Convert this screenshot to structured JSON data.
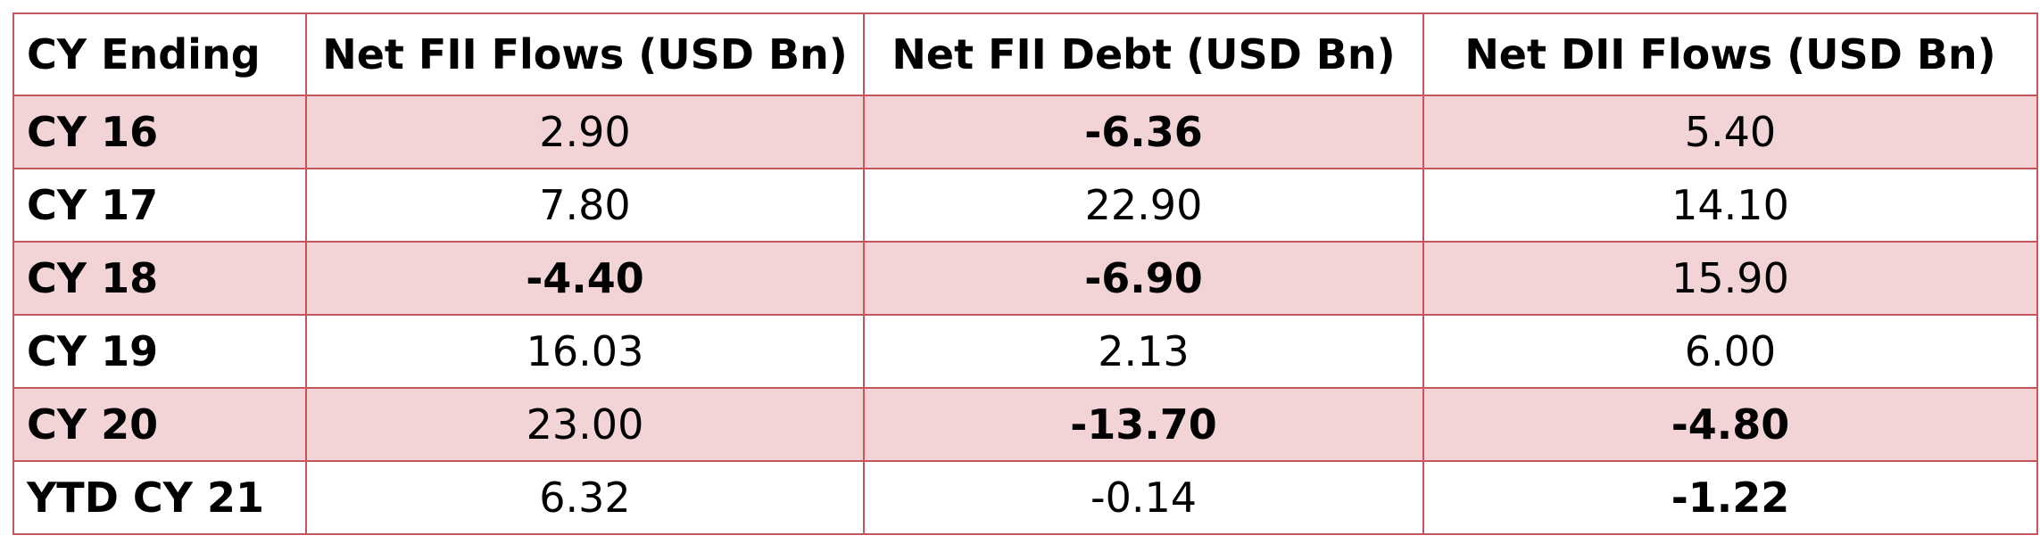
{
  "table": {
    "columns": [
      "CY Ending",
      "Net FII Flows (USD Bn)",
      "Net FII Debt (USD Bn)",
      "Net DII Flows (USD Bn)"
    ],
    "rows": [
      {
        "label": "CY 16",
        "values": [
          "2.90",
          "-6.36",
          "5.40"
        ]
      },
      {
        "label": "CY 17",
        "values": [
          "7.80",
          "22.90",
          "14.10"
        ]
      },
      {
        "label": "CY 18",
        "values": [
          "-4.40",
          "-6.90",
          "15.90"
        ]
      },
      {
        "label": "CY 19",
        "values": [
          "16.03",
          "2.13",
          "6.00"
        ]
      },
      {
        "label": "CY 20",
        "values": [
          "23.00",
          "-13.70",
          "-4.80"
        ]
      },
      {
        "label": "YTD CY 21",
        "values": [
          "6.32",
          "-0.14",
          "-1.22"
        ]
      }
    ]
  },
  "colors": {
    "border": "#c9545e",
    "row_shade": "#f2d3d6"
  }
}
